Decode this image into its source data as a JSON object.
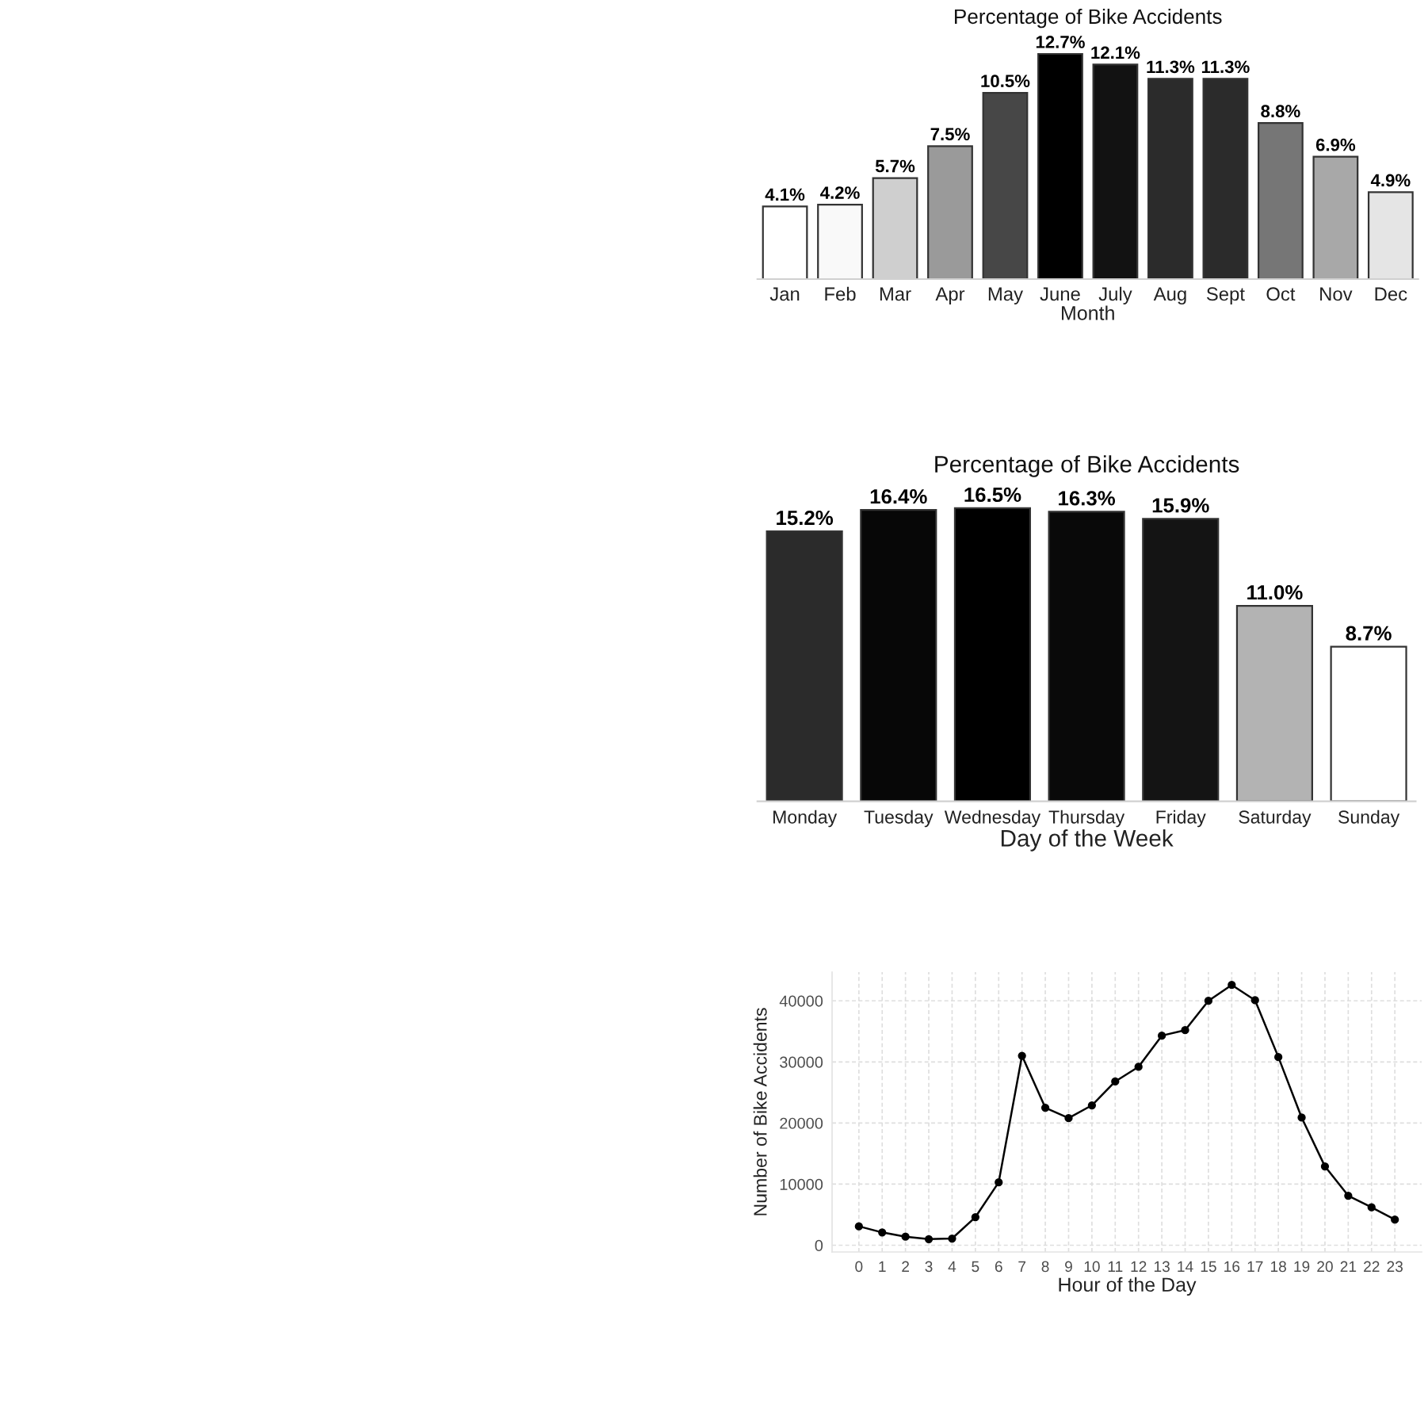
{
  "chart_data": [
    {
      "type": "bar",
      "title": "Percentage of Bike Accidents",
      "xlabel": "Month",
      "categories": [
        "Jan",
        "Feb",
        "Mar",
        "Apr",
        "May",
        "June",
        "July",
        "Aug",
        "Sept",
        "Oct",
        "Nov",
        "Dec"
      ],
      "values": [
        4.1,
        4.2,
        5.7,
        7.5,
        10.5,
        12.7,
        12.1,
        11.3,
        11.3,
        8.8,
        6.9,
        4.9
      ],
      "value_labels": [
        "4.1%",
        "4.2%",
        "5.7%",
        "7.5%",
        "10.5%",
        "12.7%",
        "12.1%",
        "11.3%",
        "11.3%",
        "8.8%",
        "6.9%",
        "4.9%"
      ],
      "colors": [
        "#ffffff",
        "#f9f9f9",
        "#cfcfcf",
        "#9a9a9a",
        "#474747",
        "#000000",
        "#121212",
        "#2b2b2b",
        "#2b2b2b",
        "#767676",
        "#a8a8a8",
        "#e5e5e5"
      ],
      "tick_labels": "x"
    },
    {
      "type": "bar",
      "title": "Percentage of Bike Accidents",
      "xlabel": "Day of the Week",
      "categories": [
        "Monday",
        "Tuesday",
        "Wednesday",
        "Thursday",
        "Friday",
        "Saturday",
        "Sunday"
      ],
      "values": [
        15.2,
        16.4,
        16.5,
        16.3,
        15.9,
        11.0,
        8.7
      ],
      "value_labels": [
        "15.2%",
        "16.4%",
        "16.5%",
        "16.3%",
        "15.9%",
        "11.0%",
        "8.7%"
      ],
      "colors": [
        "#2b2b2b",
        "#070707",
        "#000000",
        "#090909",
        "#141414",
        "#b3b3b3",
        "#ffffff"
      ],
      "tick_labels": "x"
    },
    {
      "type": "line",
      "xlabel": "Hour of the Day",
      "ylabel": "Number of Bike Accidents",
      "x": [
        0,
        1,
        2,
        3,
        4,
        5,
        6,
        7,
        8,
        9,
        10,
        11,
        12,
        13,
        14,
        15,
        16,
        17,
        18,
        19,
        20,
        21,
        22,
        23
      ],
      "values": [
        3100,
        2100,
        1400,
        1000,
        1100,
        4600,
        10300,
        31000,
        22500,
        20800,
        22900,
        26800,
        29200,
        34300,
        35200,
        40000,
        42600,
        40100,
        30800,
        20900,
        12900,
        8100,
        6200,
        4200
      ],
      "color": "#000000",
      "xlim": [
        -1.15,
        24.15
      ],
      "ylim": [
        -1100,
        44700
      ],
      "xticks": [
        0,
        1,
        2,
        3,
        4,
        5,
        6,
        7,
        8,
        9,
        10,
        11,
        12,
        13,
        14,
        15,
        16,
        17,
        18,
        19,
        20,
        21,
        22,
        23
      ],
      "yticks": [
        0,
        10000,
        20000,
        30000,
        40000
      ],
      "grid": true,
      "marker": "circle",
      "line_style": "solid"
    }
  ]
}
